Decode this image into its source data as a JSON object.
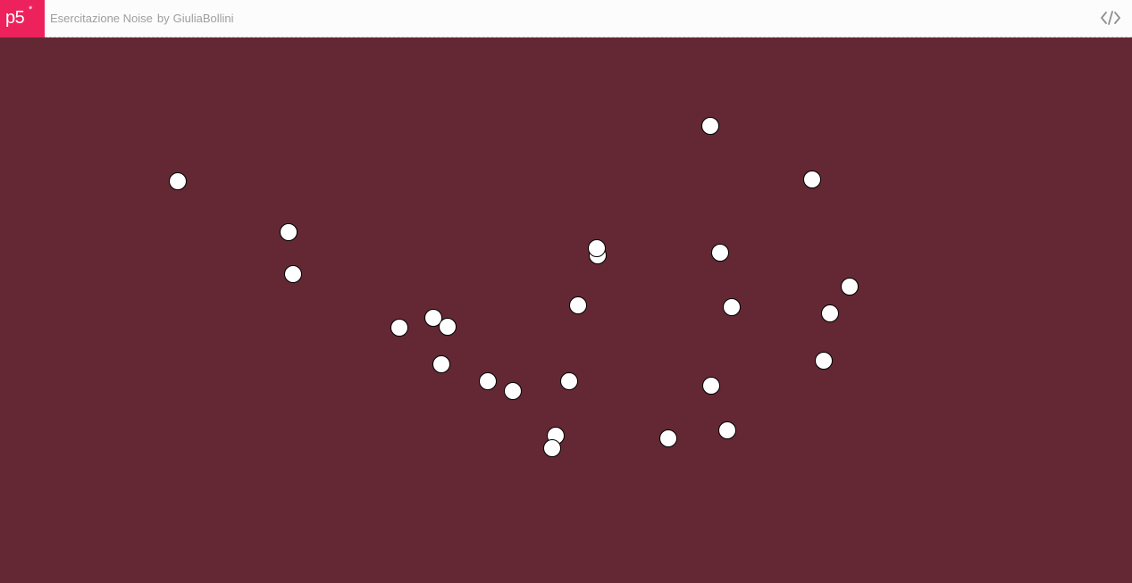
{
  "header": {
    "logo_text": "p5",
    "logo_asterisk": "*",
    "sketch_title": "Esercitazione Noise",
    "by_label": "by",
    "author": "GiuliaBollini",
    "code_icon": "code-icon"
  },
  "colors": {
    "background": "#632834",
    "circle_fill": "#ffffff",
    "circle_stroke": "#000000",
    "logo_bg": "#ed225d"
  }
}
